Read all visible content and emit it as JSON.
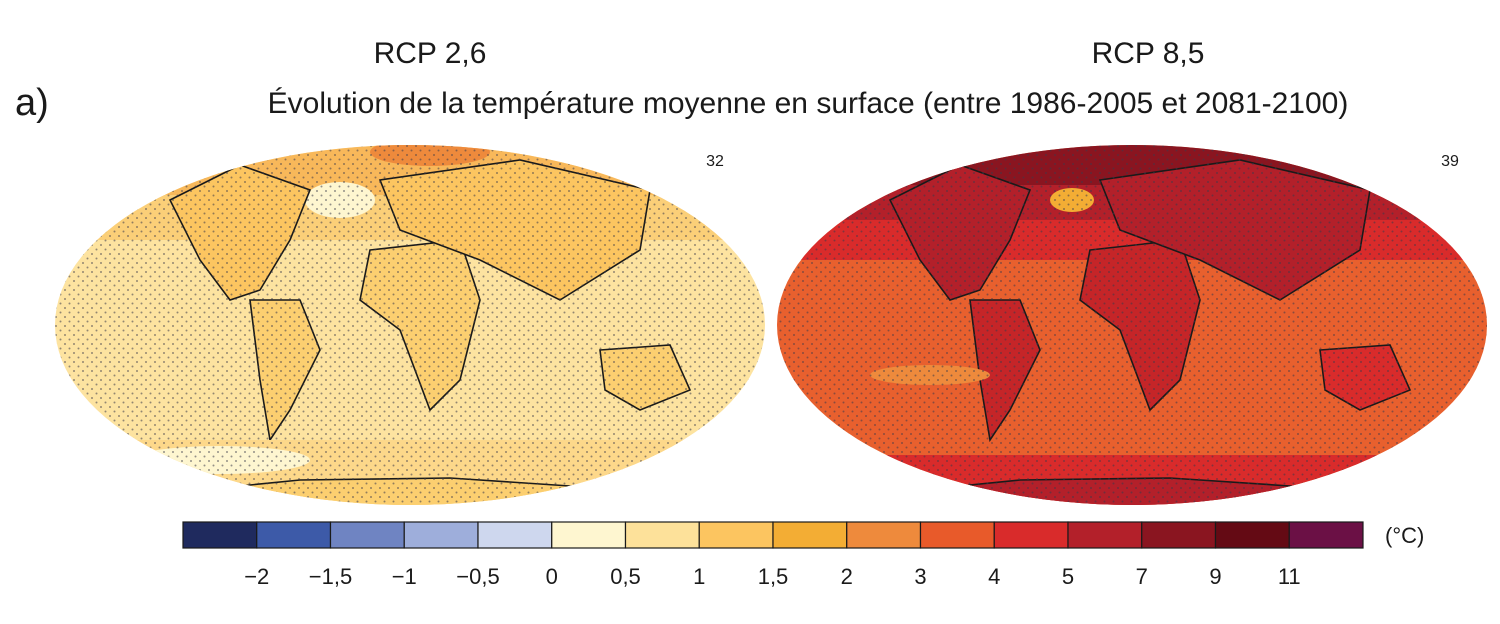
{
  "panel_label": "a)",
  "title": "Évolution de la température moyenne en surface (entre 1986-2005 et 2081-2100)",
  "maps": [
    {
      "scenario": "RCP 2,6",
      "model_count": 32
    },
    {
      "scenario": "RCP 8,5",
      "model_count": 39
    }
  ],
  "colorbar": {
    "colors": [
      "#1f2a5e",
      "#3d5aa8",
      "#6f84c2",
      "#9eaedb",
      "#ced7ee",
      "#fef6d0",
      "#fde19a",
      "#fcc560",
      "#f3ad34",
      "#ee8a3c",
      "#e85a2a",
      "#d92b2b",
      "#b3202a",
      "#8a1520",
      "#640a14",
      "#6b1045"
    ],
    "labels": [
      "−2",
      "−1,5",
      "−1",
      "−0,5",
      "0",
      "0,5",
      "1",
      "1,5",
      "2",
      "3",
      "4",
      "5",
      "7",
      "9",
      "11"
    ],
    "unit": "(°C)"
  }
}
